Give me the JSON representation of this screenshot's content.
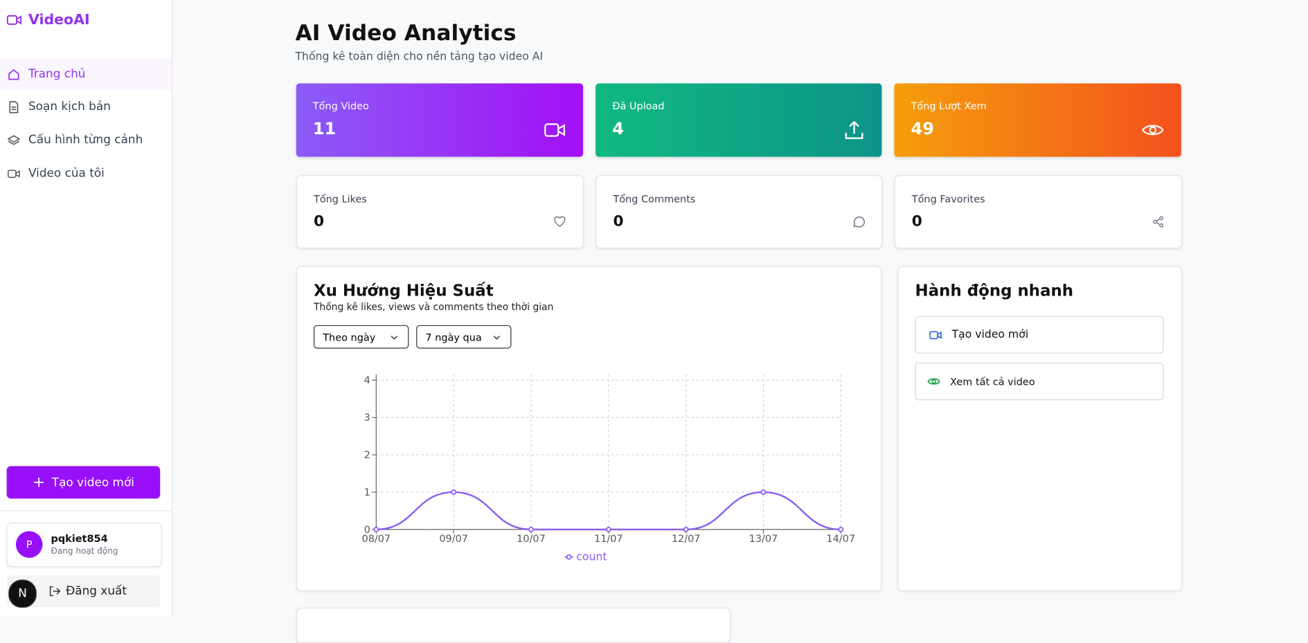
{
  "sidebar": {
    "logo": "VideoAI",
    "nav": [
      "Trang chủ",
      "Soạn kịch bản",
      "Cấu hình từng cảnh",
      "Video của tôi"
    ],
    "create_button": "Tạo video mới",
    "user": {
      "avatar": "P",
      "name": "pqkiet854",
      "status": "Đang hoạt động"
    },
    "logout": "Đăng xuất",
    "dev_badge": "N"
  },
  "header": {
    "title": "AI Video Analytics",
    "subtitle": "Thống kê toàn diện cho nền tảng tạo video AI"
  },
  "stats": [
    {
      "label": "Tổng Video",
      "value": 11
    },
    {
      "label": "Đã Upload",
      "value": 4
    },
    {
      "label": "Tổng Lượt Xem",
      "value": 49
    },
    {
      "label": "Tổng Likes",
      "value": 0
    },
    {
      "label": "Tổng Comments",
      "value": 0
    },
    {
      "label": "Tổng Favorites",
      "value": 0
    }
  ],
  "chart_data": {
    "type": "line",
    "title": "Xu Hướng Hiệu Suất",
    "subtitle": "Thống kê likes, views và comments theo thời gian",
    "filters": [
      "Theo ngày",
      "7 ngày qua"
    ],
    "categories": [
      "08/07",
      "09/07",
      "10/07",
      "11/07",
      "12/07",
      "13/07",
      "14/07"
    ],
    "series": [
      {
        "name": "count",
        "color": "#8b5cf6",
        "values": [
          0,
          1,
          0,
          0,
          0,
          1,
          0
        ]
      }
    ],
    "ylim": [
      0,
      4
    ],
    "yticks": [
      0,
      1,
      2,
      3,
      4
    ],
    "grid": true
  },
  "quick_actions": {
    "title": "Hành động nhanh",
    "items": [
      "Tạo video mới",
      "Xem tất cả video"
    ]
  }
}
